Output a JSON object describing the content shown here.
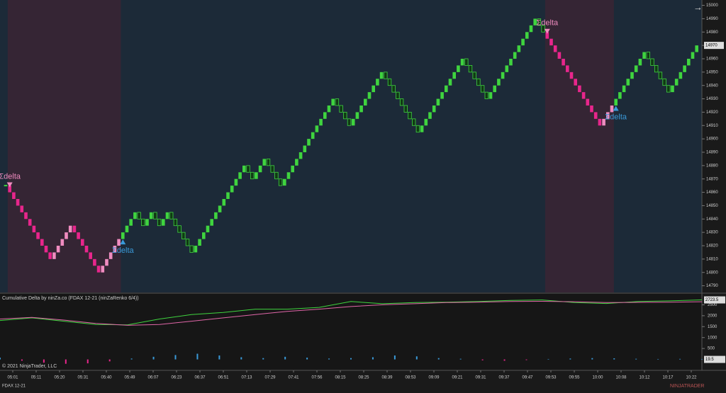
{
  "chart_data": [
    {
      "type": "renko",
      "values": [
        14865,
        14860,
        14855,
        14850,
        14845,
        14840,
        14835,
        14830,
        14825,
        14820,
        14815,
        14810,
        14815,
        14820,
        14825,
        14830,
        14835,
        14830,
        14825,
        14820,
        14815,
        14810,
        14805,
        14800,
        14805,
        14810,
        14815,
        14820,
        14825,
        14830,
        14835,
        14840,
        14845,
        14840,
        14835,
        14840,
        14845,
        14840,
        14835,
        14840,
        14845,
        14840,
        14835,
        14830,
        14825,
        14820,
        14815,
        14820,
        14825,
        14830,
        14835,
        14840,
        14845,
        14850,
        14855,
        14860,
        14865,
        14870,
        14875,
        14880,
        14875,
        14870,
        14875,
        14880,
        14885,
        14880,
        14875,
        14870,
        14865,
        14870,
        14875,
        14880,
        14885,
        14890,
        14895,
        14900,
        14905,
        14910,
        14915,
        14920,
        14925,
        14930,
        14925,
        14920,
        14915,
        14910,
        14915,
        14920,
        14925,
        14930,
        14935,
        14940,
        14945,
        14950,
        14945,
        14940,
        14935,
        14930,
        14925,
        14920,
        14915,
        14910,
        14905,
        14910,
        14915,
        14920,
        14925,
        14930,
        14935,
        14940,
        14945,
        14950,
        14955,
        14960,
        14955,
        14950,
        14945,
        14940,
        14935,
        14930,
        14935,
        14940,
        14945,
        14950,
        14955,
        14960,
        14965,
        14970,
        14975,
        14980,
        14985,
        14990,
        14985,
        14980,
        14975,
        14970,
        14965,
        14960,
        14955,
        14950,
        14945,
        14940,
        14935,
        14930,
        14925,
        14920,
        14915,
        14910,
        14915,
        14920,
        14925,
        14930,
        14935,
        14940,
        14945,
        14950,
        14955,
        14960,
        14965,
        14960,
        14955,
        14950,
        14945,
        14940,
        14935,
        14940,
        14945,
        14950,
        14955,
        14960,
        14965,
        14970
      ],
      "ylim": [
        14785,
        15004
      ],
      "yticks": [
        14790,
        14800,
        14810,
        14820,
        14830,
        14840,
        14850,
        14860,
        14870,
        14880,
        14890,
        14900,
        14910,
        14920,
        14930,
        14940,
        14950,
        14960,
        14970,
        14980,
        14990,
        15000
      ],
      "x_labels": [
        "05:01",
        "05:11",
        "05:20",
        "05:31",
        "05:40",
        "05:49",
        "06:07",
        "06:23",
        "06:37",
        "06:51",
        "07:13",
        "07:29",
        "07:41",
        "07:56",
        "08:15",
        "08:25",
        "08:39",
        "08:53",
        "09:09",
        "09:21",
        "09:31",
        "09:37",
        "09:47",
        "09:53",
        "09:55",
        "10:00",
        "10:08",
        "10:12",
        "10:17",
        "10:22"
      ],
      "signals": [
        {
          "index": 1,
          "direction": "sell",
          "label": "Σdelta"
        },
        {
          "index": 29,
          "direction": "buy",
          "label": "Σdelta"
        },
        {
          "index": 134,
          "direction": "sell",
          "label": "Σdelta"
        },
        {
          "index": 151,
          "direction": "buy",
          "label": "Σdelta"
        }
      ],
      "up_color": "#3fd43f",
      "down_color": "#103a14",
      "sell_color": "#e8268c",
      "sell_up_color": "#f08cc0",
      "buy_signal_color": "#3a9ad9"
    },
    {
      "type": "line",
      "title": "Cumulative Delta by ninZa.co (FDAX 12-21 (ninZaRenko 6/4))",
      "series": [
        {
          "color": "#3fd43f",
          "values": [
            1780,
            1900,
            1750,
            1600,
            1580,
            1850,
            2050,
            2150,
            2300,
            2300,
            2380,
            2650,
            2550,
            2600,
            2620,
            2650,
            2700,
            2720,
            2600,
            2560,
            2650,
            2680,
            2723.5
          ]
        },
        {
          "color": "#e066a8",
          "values": [
            1850,
            1920,
            1800,
            1650,
            1560,
            1600,
            1750,
            1900,
            2050,
            2200,
            2300,
            2420,
            2500,
            2550,
            2600,
            2620,
            2650,
            2660,
            2640,
            2600,
            2610,
            2620,
            2640
          ]
        }
      ],
      "histogram": {
        "values": [
          80,
          -60,
          -150,
          -200,
          -180,
          -90,
          40,
          120,
          200,
          260,
          180,
          100,
          60,
          120,
          80,
          40,
          60,
          100,
          180,
          140,
          60,
          30,
          -40,
          -60,
          -30,
          20,
          40,
          60,
          50,
          30,
          20,
          25,
          19.5
        ],
        "pos_color": "#3a9ad9",
        "neg_color": "#e8268c"
      },
      "ylim": [
        -500,
        3000
      ],
      "yticks": [
        500,
        1000,
        1500,
        2000,
        2500
      ]
    }
  ],
  "copyright": "© 2021 NinjaTrader, LLC",
  "instrument": "FDAX 12-21",
  "brand": "NINJATRADER"
}
